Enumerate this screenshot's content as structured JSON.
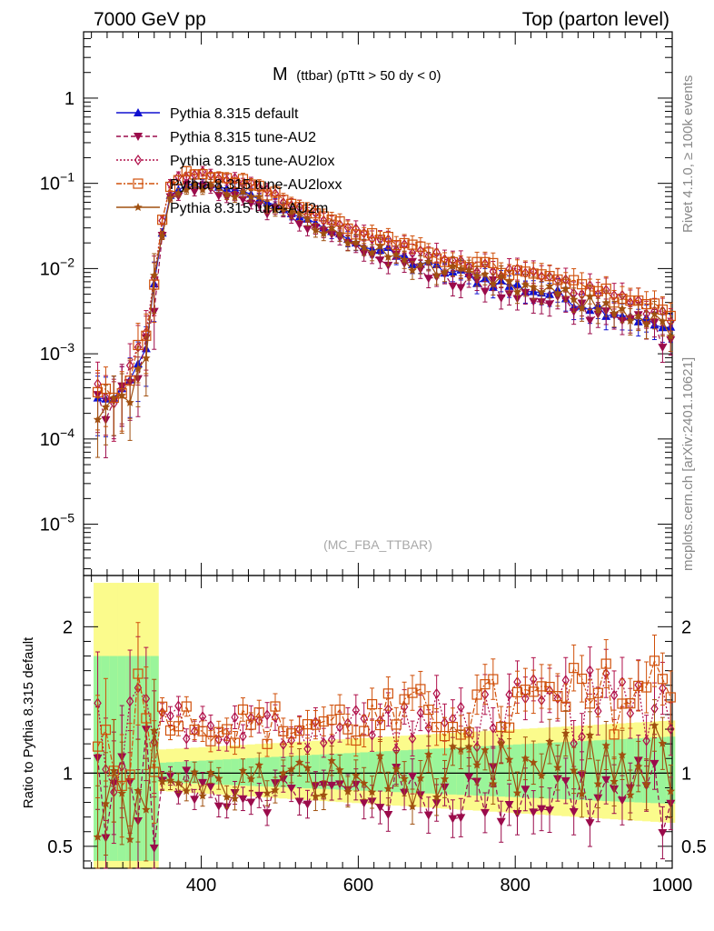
{
  "header": {
    "left": "7000 GeV pp",
    "right": "Top (parton level)"
  },
  "side_labels": {
    "rivet": "Rivet 4.1.0, ≥ 100k events",
    "mcplots": "mcplots.cern.ch [arXiv:2401.10621]"
  },
  "plot_title": {
    "main": "M",
    "sub": "(ttbar) (pTtt > 50 dy < 0)"
  },
  "watermark": "(MC_FBA_TTBAR)",
  "ratio_ylabel": "Ratio to Pythia 8.315 default",
  "colors": {
    "default": "#1010d0",
    "au2": "#9b0b4b",
    "au2lox": "#b0104a",
    "au2loxx": "#d0500a",
    "au2m": "#a05010",
    "band_green": "#9af59a",
    "band_yellow": "#fbfb8c"
  },
  "chart_data": {
    "type": "line",
    "title": "M (ttbar) (pTtt > 50 dy < 0)",
    "xlabel": "",
    "ylabel": "",
    "xlim": [
      250,
      1000
    ],
    "ylim_main": [
      2.5e-06,
      6
    ],
    "ylim_ratio": [
      0.35,
      2.35
    ],
    "x_ticks": [
      400,
      600,
      800,
      1000
    ],
    "y_ticks_main": [
      "1",
      "10^-1",
      "10^-2",
      "10^-3",
      "10^-4",
      "10^-5"
    ],
    "y_ticks_ratio": [
      "0.5",
      "1",
      "2"
    ],
    "anchors": {
      "x": [
        270,
        290,
        310,
        330,
        345,
        360,
        380,
        400,
        430,
        460,
        500,
        550,
        600,
        650,
        700,
        750,
        800,
        850,
        900,
        950,
        1000
      ],
      "default": [
        0.0003,
        0.0003,
        0.0005,
        0.0012,
        0.015,
        0.07,
        0.095,
        0.1,
        0.09,
        0.075,
        0.052,
        0.032,
        0.02,
        0.014,
        0.01,
        0.0078,
        0.0062,
        0.005,
        0.0036,
        0.0028,
        0.0018
      ]
    },
    "ratio_anchors": {
      "au2": [
        1.0,
        0.95,
        0.92,
        0.9,
        0.88,
        0.87,
        0.86,
        0.86,
        0.85,
        0.85,
        0.85
      ],
      "au2lox": [
        1.05,
        1.3,
        1.4,
        1.35,
        1.3,
        1.3,
        1.32,
        1.35,
        1.4,
        1.45,
        1.5
      ],
      "au2loxx": [
        1.1,
        1.35,
        1.42,
        1.38,
        1.32,
        1.33,
        1.35,
        1.4,
        1.45,
        1.5,
        1.6
      ],
      "au2m": [
        0.95,
        0.93,
        0.92,
        0.92,
        0.93,
        0.95,
        0.95,
        0.97,
        1.0,
        1.05,
        1.1
      ]
    },
    "bin_count": 72,
    "series": [
      {
        "key": "default",
        "name": "Pythia 8.315 default",
        "marker": "triangle-up",
        "dash": "solid"
      },
      {
        "key": "au2",
        "name": "Pythia 8.315 tune-AU2",
        "marker": "triangle-down",
        "dash": "dashed"
      },
      {
        "key": "au2lox",
        "name": "Pythia 8.315 tune-AU2lox",
        "marker": "diamond-open",
        "dash": "dotted"
      },
      {
        "key": "au2loxx",
        "name": "Pythia 8.315 tune-AU2loxx",
        "marker": "square-open",
        "dash": "dashdot"
      },
      {
        "key": "au2m",
        "name": "Pythia 8.315 tune-AU2m",
        "marker": "star",
        "dash": "solid"
      }
    ],
    "legend_position": "top-left"
  }
}
